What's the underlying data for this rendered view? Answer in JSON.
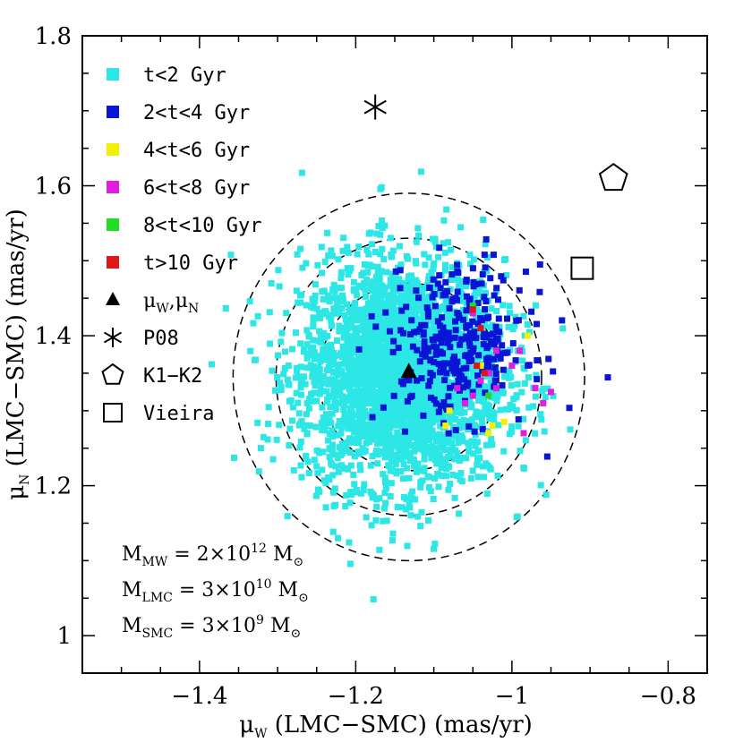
{
  "chart_data": {
    "type": "scatter",
    "xlabel": {
      "symbol": "μ",
      "sub": "W",
      "text": " (LMC−SMC) (mas/yr)"
    },
    "ylabel": {
      "symbol": "μ",
      "sub": "N",
      "text": " (LMC−SMC) (mas/yr)"
    },
    "xlim": [
      -1.55,
      -0.75
    ],
    "ylim": [
      0.95,
      1.8
    ],
    "xticks": [
      {
        "value": -1.4,
        "label": "−1.4"
      },
      {
        "value": -1.2,
        "label": "−1.2"
      },
      {
        "value": -1.0,
        "label": "−1"
      },
      {
        "value": -0.8,
        "label": "−0.8"
      }
    ],
    "yticks": [
      {
        "value": 1.0,
        "label": "1"
      },
      {
        "value": 1.2,
        "label": "1.2"
      },
      {
        "value": 1.4,
        "label": "1.4"
      },
      {
        "value": 1.6,
        "label": "1.6"
      },
      {
        "value": 1.8,
        "label": "1.8"
      }
    ],
    "series": [
      {
        "name": "t<2 Gyr",
        "color": "#2de6e6",
        "cloud": {
          "center": [
            -1.14,
            1.35
          ],
          "sx": 0.065,
          "sy": 0.075,
          "count": 3000
        }
      },
      {
        "name": "2<t<4 Gyr",
        "color": "#0a14d6",
        "cloud": {
          "center": [
            -1.07,
            1.39
          ],
          "sx": 0.045,
          "sy": 0.05,
          "count": 300
        }
      },
      {
        "name": "4<t<6 Gyr",
        "color": "#f2f200",
        "points": [
          [
            -1.085,
            1.28
          ],
          [
            -1.08,
            1.3
          ],
          [
            -1.03,
            1.27
          ],
          [
            -1.025,
            1.28
          ],
          [
            -1.01,
            1.285
          ],
          [
            -0.98,
            1.4
          ],
          [
            -1.04,
            1.36
          ]
        ]
      },
      {
        "name": "6<t<8 Gyr",
        "color": "#e01ee0",
        "points": [
          [
            -1.06,
            1.31
          ],
          [
            -1.05,
            1.32
          ],
          [
            -1.04,
            1.34
          ],
          [
            -1.03,
            1.35
          ],
          [
            -1.02,
            1.33
          ],
          [
            -1.0,
            1.36
          ],
          [
            -0.99,
            1.38
          ],
          [
            -0.97,
            1.33
          ],
          [
            -0.96,
            1.31
          ],
          [
            -0.985,
            1.27
          ],
          [
            -1.05,
            1.43
          ],
          [
            -1.045,
            1.36
          ],
          [
            -0.95,
            1.325
          ],
          [
            -1.07,
            1.33
          ],
          [
            -1.02,
            1.38
          ]
        ]
      },
      {
        "name": "8<t<10 Gyr",
        "color": "#22dd22",
        "points": [
          [
            -1.03,
            1.32
          ],
          [
            -1.05,
            1.44
          ]
        ]
      },
      {
        "name": "t>10 Gyr",
        "color": "#e01515",
        "points": [
          [
            -1.04,
            1.41
          ],
          [
            -1.045,
            1.36
          ],
          [
            -1.035,
            1.35
          ],
          [
            -1.05,
            1.435
          ]
        ]
      }
    ],
    "mean_point": {
      "name": "μ_W,μ_N",
      "x": -1.132,
      "y": 1.352
    },
    "reference_points": [
      {
        "name": "P08",
        "marker": "asterisk",
        "x": -1.175,
        "y": 1.705
      },
      {
        "name": "K1-K2",
        "marker": "pentagon",
        "x": -0.87,
        "y": 1.61
      },
      {
        "name": "Vieira",
        "marker": "square",
        "x": -0.91,
        "y": 1.49
      }
    ],
    "contours": {
      "center": [
        -1.132,
        1.345
      ],
      "radii": [
        [
          0.06,
          0.065
        ],
        [
          0.115,
          0.125
        ],
        [
          0.17,
          0.185
        ],
        [
          0.225,
          0.245
        ]
      ]
    },
    "legend": {
      "placement": "top-left",
      "items": [
        {
          "type": "square",
          "color": "#2de6e6",
          "label": "t<2 Gyr"
        },
        {
          "type": "square",
          "color": "#0a14d6",
          "label": "2<t<4 Gyr"
        },
        {
          "type": "square",
          "color": "#f2f200",
          "label": "4<t<6 Gyr"
        },
        {
          "type": "square",
          "color": "#e01ee0",
          "label": "6<t<8 Gyr"
        },
        {
          "type": "square",
          "color": "#22dd22",
          "label": "8<t<10 Gyr"
        },
        {
          "type": "square",
          "color": "#e01515",
          "label": "t>10 Gyr"
        },
        {
          "type": "triangle",
          "color": "#000000",
          "label_symbol1": "μ",
          "label_sub1": "W",
          "label_sep": ",",
          "label_symbol2": "μ",
          "label_sub2": "N"
        },
        {
          "type": "asterisk",
          "color": "#000000",
          "label": "P08"
        },
        {
          "type": "pentagon",
          "color": "#000000",
          "label": "K1−K2"
        },
        {
          "type": "square-open",
          "color": "#000000",
          "label": "Vieira"
        }
      ]
    },
    "annotations": [
      {
        "mass": "M",
        "sub": "MW",
        "eq": " =  2×10",
        "exp": "12",
        "unit": " M",
        "unit_sym": "⊙"
      },
      {
        "mass": "M",
        "sub": "LMC",
        "eq": " =  3×10",
        "exp": "10",
        "unit": " M",
        "unit_sym": "⊙"
      },
      {
        "mass": "M",
        "sub": "SMC",
        "eq": " =  3×10",
        "exp": "9",
        "unit": " M",
        "unit_sym": "⊙"
      }
    ]
  }
}
